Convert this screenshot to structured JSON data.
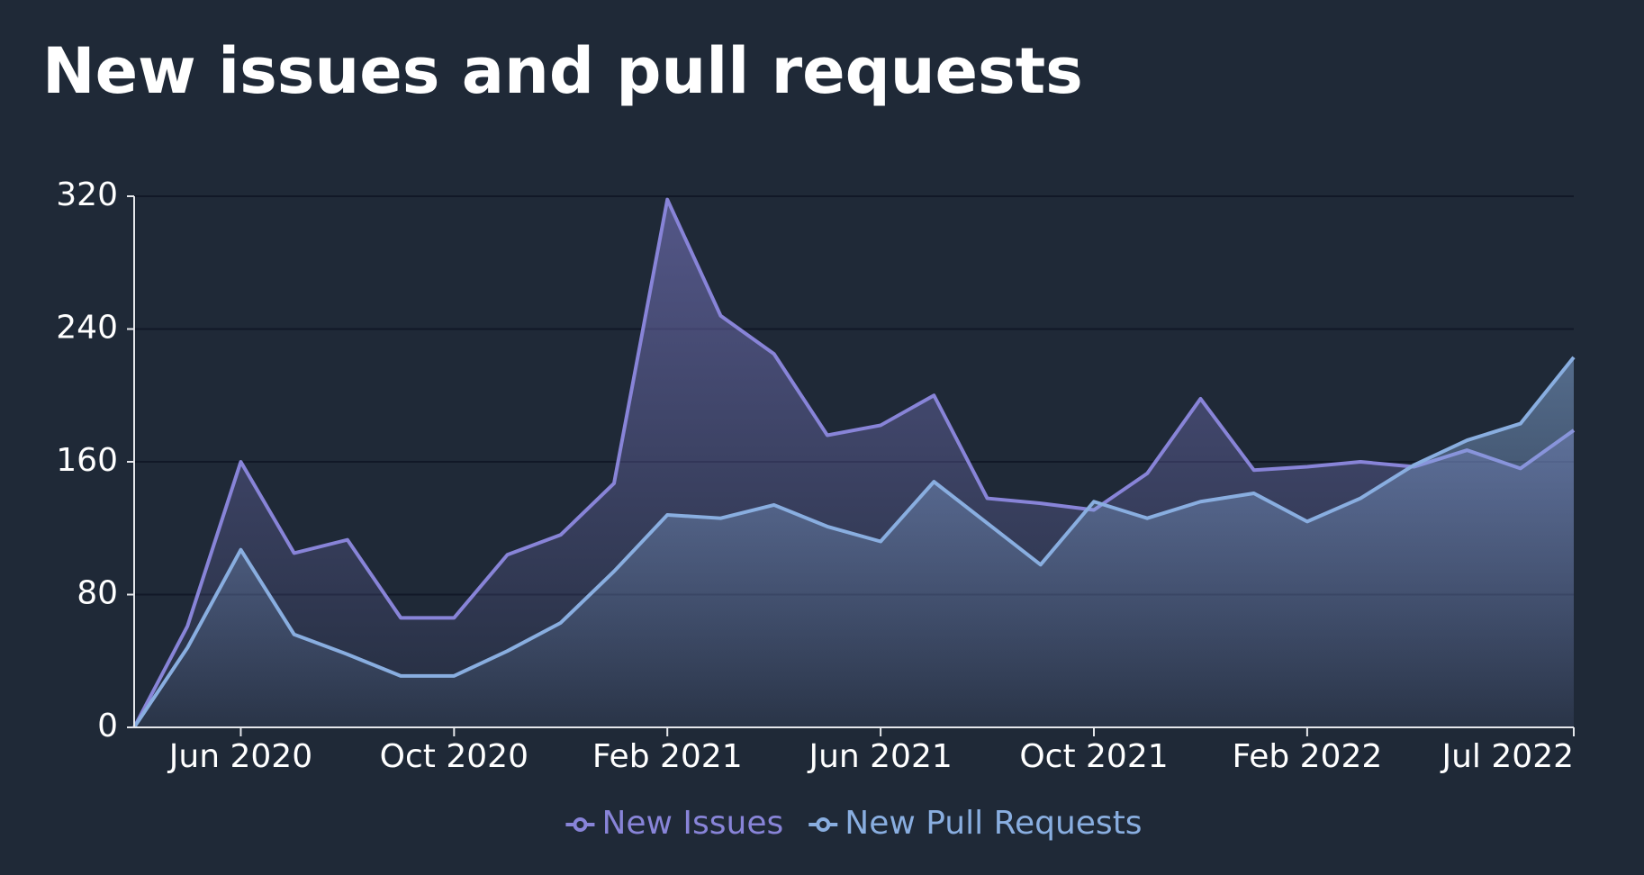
{
  "chart_data": {
    "type": "area",
    "title": "New issues and pull requests",
    "categories": [
      null,
      null,
      "Jun 2020",
      null,
      null,
      null,
      "Oct 2020",
      null,
      null,
      null,
      "Feb 2021",
      null,
      null,
      null,
      "Jun 2021",
      null,
      null,
      null,
      "Oct 2021",
      null,
      null,
      null,
      "Feb 2022",
      null,
      null,
      null,
      null,
      "Jul 2022"
    ],
    "series": [
      {
        "name": "New Issues",
        "color": "#8884d8",
        "values": [
          0,
          61,
          160,
          105,
          113,
          66,
          66,
          104,
          116,
          147,
          318,
          248,
          225,
          176,
          182,
          200,
          138,
          135,
          131,
          153,
          198,
          155,
          157,
          160,
          157,
          167,
          156,
          179
        ]
      },
      {
        "name": "New Pull Requests",
        "color": "#89aee0",
        "values": [
          0,
          48,
          107,
          56,
          44,
          31,
          31,
          46,
          63,
          94,
          128,
          126,
          134,
          121,
          112,
          148,
          123,
          98,
          136,
          126,
          136,
          141,
          124,
          138,
          158,
          173,
          183,
          223
        ]
      }
    ],
    "ylim": [
      0,
      320
    ],
    "yticks": [
      0,
      80,
      160,
      240,
      320
    ],
    "grid": true
  }
}
